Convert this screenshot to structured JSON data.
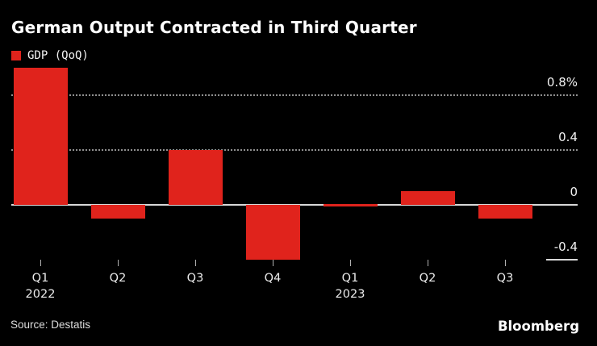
{
  "title": "German Output Contracted in Third Quarter",
  "legend": {
    "label": "GDP (QoQ)"
  },
  "colors": {
    "background": "#000000",
    "accent_red": "#e0231c",
    "grid_dotted": "#8f8f8f",
    "zero_line": "#d8d8d8",
    "title_text": "#ffffff",
    "axis_text": "#f2f2f2",
    "footer_text": "#dcdcdc"
  },
  "chart_data": {
    "type": "bar",
    "series_name": "GDP (QoQ)",
    "categories": [
      {
        "quarter": "Q1",
        "year": "2022"
      },
      {
        "quarter": "Q2",
        "year": ""
      },
      {
        "quarter": "Q3",
        "year": ""
      },
      {
        "quarter": "Q4",
        "year": ""
      },
      {
        "quarter": "Q1",
        "year": "2023"
      },
      {
        "quarter": "Q2",
        "year": ""
      },
      {
        "quarter": "Q3",
        "year": ""
      }
    ],
    "values": [
      1.0,
      -0.1,
      0.4,
      -0.4,
      0.0,
      0.1,
      -0.1
    ],
    "unit": "%",
    "ylim": [
      -0.55,
      1.0
    ],
    "yticks": [
      {
        "value": 0.8,
        "label": "0.8%",
        "line": "dotted"
      },
      {
        "value": 0.4,
        "label": "0.4",
        "line": "dotted"
      },
      {
        "value": 0.0,
        "label": "0",
        "line": "solid"
      },
      {
        "value": -0.4,
        "label": "-0.4",
        "line": "stub"
      }
    ],
    "grid": "horizontal-dotted",
    "legend_position": "top-left",
    "xlabel": "",
    "ylabel": ""
  },
  "footer": {
    "source": "Source: Destatis",
    "brand": "Bloomberg"
  }
}
